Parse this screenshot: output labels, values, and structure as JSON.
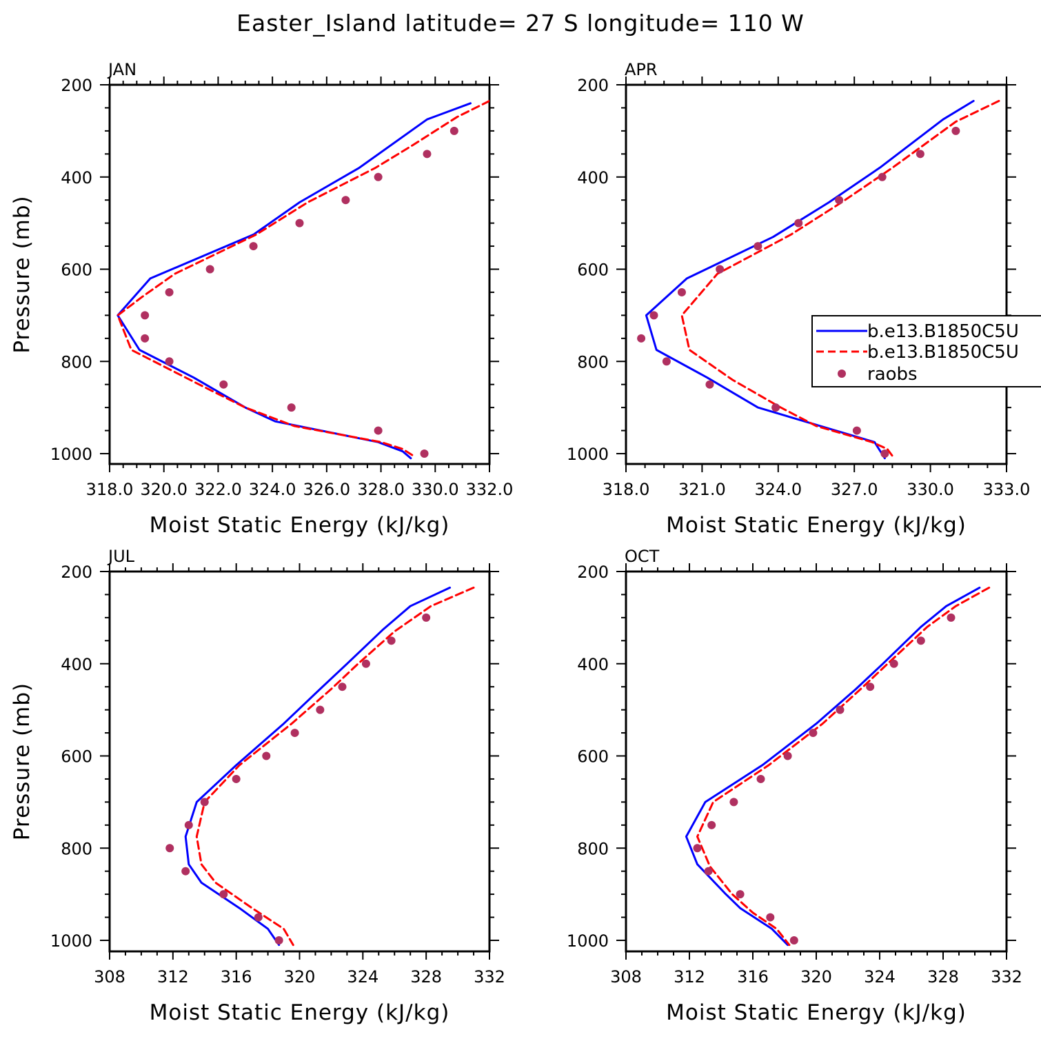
{
  "title": "Easter_Island  latitude= 27 S longitude= 110 W",
  "colors": {
    "model1": "#0000ff",
    "model2": "#ff0000",
    "obs": "#b03060",
    "axis": "#000000"
  },
  "chart_data": [
    {
      "type": "line",
      "panel": "JAN",
      "xlabel": "Moist Static Energy (kJ/kg)",
      "ylabel": "Pressure (mb)",
      "xlim": [
        318,
        332
      ],
      "ylim": [
        1000,
        200
      ],
      "x_ticks": [
        318,
        320,
        322,
        324,
        326,
        328,
        330,
        332
      ],
      "x_tick_labels": [
        "318.0",
        "320.0",
        "322.0",
        "324.0",
        "326.0",
        "328.0",
        "330.0",
        "332.0"
      ],
      "y_ticks": [
        200,
        400,
        600,
        800,
        1000
      ],
      "y_tick_labels": [
        "200",
        "400",
        "600",
        "800",
        "1000"
      ],
      "series": [
        {
          "name": "b.e13.B1850C5U",
          "style": "solid",
          "color": "#0000ff",
          "pressure": [
            240,
            275,
            380,
            455,
            525,
            620,
            700,
            775,
            835,
            900,
            930,
            975,
            995,
            1010
          ],
          "values": [
            331.3,
            329.7,
            327.2,
            325.0,
            323.3,
            319.5,
            318.3,
            319.1,
            321.1,
            323.0,
            324.1,
            327.9,
            328.8,
            329.1
          ]
        },
        {
          "name": "b.e13.B1850C5U",
          "style": "dashed",
          "color": "#ff0000",
          "pressure": [
            235,
            270,
            330,
            380,
            455,
            525,
            610,
            660,
            700,
            775,
            850,
            900,
            940,
            975,
            990,
            1005
          ],
          "values": [
            332.0,
            330.8,
            329.2,
            327.8,
            325.3,
            323.4,
            320.4,
            319.2,
            318.3,
            318.8,
            321.3,
            323.0,
            324.8,
            328.0,
            328.8,
            329.2
          ]
        }
      ],
      "raobs": {
        "name": "raobs",
        "pressure": [
          300,
          350,
          400,
          450,
          500,
          550,
          600,
          650,
          700,
          750,
          800,
          850,
          900,
          950,
          1000
        ],
        "values": [
          330.7,
          329.7,
          327.9,
          326.7,
          325.0,
          323.3,
          321.7,
          320.2,
          319.3,
          319.3,
          320.2,
          322.2,
          324.7,
          327.9,
          329.6
        ]
      }
    },
    {
      "type": "line",
      "panel": "APR",
      "xlabel": "Moist Static Energy (kJ/kg)",
      "ylabel": "",
      "xlim": [
        318,
        333
      ],
      "ylim": [
        1000,
        200
      ],
      "x_ticks": [
        318,
        321,
        324,
        327,
        330,
        333
      ],
      "x_tick_labels": [
        "318.0",
        "321.0",
        "324.0",
        "327.0",
        "330.0",
        "333.0"
      ],
      "y_ticks": [
        200,
        400,
        600,
        800,
        1000
      ],
      "y_tick_labels": [
        "200",
        "400",
        "600",
        "800",
        "1000"
      ],
      "legend": {
        "position": "center-right",
        "entries": [
          "b.e13.B1850C5U",
          "b.e13.B1850C5U",
          "raobs"
        ]
      },
      "series": [
        {
          "name": "b.e13.B1850C5U",
          "style": "solid",
          "color": "#0000ff",
          "pressure": [
            235,
            275,
            380,
            455,
            530,
            620,
            700,
            775,
            835,
            900,
            975,
            1010
          ],
          "values": [
            331.7,
            330.5,
            328.0,
            326.0,
            323.8,
            320.4,
            318.8,
            319.2,
            321.2,
            323.2,
            327.8,
            328.2
          ]
        },
        {
          "name": "b.e13.B1850C5U",
          "style": "dashed",
          "color": "#ff0000",
          "pressure": [
            235,
            280,
            380,
            455,
            525,
            610,
            700,
            775,
            840,
            900,
            940,
            975,
            990,
            1005
          ],
          "values": [
            332.7,
            331.0,
            328.5,
            326.5,
            324.5,
            321.6,
            320.2,
            320.5,
            322.2,
            324.1,
            325.5,
            327.7,
            328.3,
            328.5
          ]
        }
      ],
      "raobs": {
        "name": "raobs",
        "pressure": [
          300,
          350,
          400,
          450,
          500,
          550,
          600,
          650,
          700,
          750,
          800,
          850,
          900,
          950,
          1000
        ],
        "values": [
          331.0,
          329.6,
          328.1,
          326.4,
          324.8,
          323.2,
          321.7,
          320.2,
          319.1,
          318.6,
          319.6,
          321.3,
          323.9,
          327.1,
          328.2
        ]
      }
    },
    {
      "type": "line",
      "panel": "JUL",
      "xlabel": "Moist Static Energy (kJ/kg)",
      "ylabel": "Pressure (mb)",
      "xlim": [
        308,
        332
      ],
      "ylim": [
        1000,
        200
      ],
      "x_ticks": [
        308,
        312,
        316,
        320,
        324,
        328,
        332
      ],
      "x_tick_labels": [
        "308",
        "312",
        "316",
        "320",
        "324",
        "328",
        "332"
      ],
      "y_ticks": [
        200,
        400,
        600,
        800,
        1000
      ],
      "y_tick_labels": [
        "200",
        "400",
        "600",
        "800",
        "1000"
      ],
      "series": [
        {
          "name": "b.e13.B1850C5U",
          "style": "solid",
          "color": "#0000ff",
          "pressure": [
            235,
            275,
            325,
            400,
            455,
            530,
            620,
            700,
            775,
            835,
            875,
            930,
            975,
            1010
          ],
          "values": [
            329.5,
            327.0,
            325.3,
            323.0,
            321.3,
            319.0,
            316.0,
            313.5,
            312.8,
            313.0,
            313.8,
            316.2,
            318.0,
            318.7
          ]
        },
        {
          "name": "b.e13.B1850C5U",
          "style": "dashed",
          "color": "#ff0000",
          "pressure": [
            235,
            275,
            330,
            400,
            455,
            530,
            620,
            700,
            775,
            835,
            875,
            930,
            975,
            1010
          ],
          "values": [
            331.0,
            328.3,
            326.0,
            323.7,
            322.0,
            319.5,
            316.2,
            314.0,
            313.5,
            313.8,
            314.7,
            317.0,
            319.0,
            319.6
          ]
        }
      ],
      "raobs": {
        "name": "raobs",
        "pressure": [
          300,
          350,
          400,
          450,
          500,
          550,
          600,
          650,
          700,
          750,
          800,
          850,
          900,
          950,
          1000
        ],
        "values": [
          328.0,
          325.8,
          324.2,
          322.7,
          321.3,
          319.7,
          317.9,
          316.0,
          314.0,
          313.0,
          311.8,
          312.8,
          315.2,
          317.4,
          318.7
        ]
      }
    },
    {
      "type": "line",
      "panel": "OCT",
      "xlabel": "Moist Static Energy (kJ/kg)",
      "ylabel": "",
      "xlim": [
        308,
        332
      ],
      "ylim": [
        1000,
        200
      ],
      "x_ticks": [
        308,
        312,
        316,
        320,
        324,
        328,
        332
      ],
      "x_tick_labels": [
        "308",
        "312",
        "316",
        "320",
        "324",
        "328",
        "332"
      ],
      "y_ticks": [
        200,
        400,
        600,
        800,
        1000
      ],
      "y_tick_labels": [
        "200",
        "400",
        "600",
        "800",
        "1000"
      ],
      "series": [
        {
          "name": "b.e13.B1850C5U",
          "style": "solid",
          "color": "#0000ff",
          "pressure": [
            235,
            275,
            320,
            400,
            455,
            530,
            620,
            700,
            775,
            835,
            900,
            930,
            975,
            1010
          ],
          "values": [
            330.3,
            328.2,
            326.6,
            324.2,
            322.5,
            320.0,
            316.6,
            313.0,
            311.8,
            312.5,
            314.3,
            315.2,
            317.2,
            318.2
          ]
        },
        {
          "name": "b.e13.B1850C5U",
          "style": "dashed",
          "color": "#ff0000",
          "pressure": [
            235,
            275,
            320,
            400,
            455,
            530,
            620,
            700,
            775,
            840,
            900,
            940,
            975,
            1010
          ],
          "values": [
            330.9,
            328.8,
            327.0,
            324.5,
            322.8,
            320.4,
            317.0,
            313.5,
            312.5,
            313.3,
            314.7,
            316.0,
            317.5,
            318.3
          ]
        }
      ],
      "raobs": {
        "name": "raobs",
        "pressure": [
          300,
          350,
          400,
          450,
          500,
          550,
          600,
          650,
          700,
          750,
          800,
          850,
          900,
          950,
          1000
        ],
        "values": [
          328.5,
          326.6,
          324.9,
          323.4,
          321.5,
          319.8,
          318.2,
          316.5,
          314.8,
          313.4,
          312.5,
          313.2,
          315.2,
          317.1,
          318.6
        ]
      }
    }
  ]
}
